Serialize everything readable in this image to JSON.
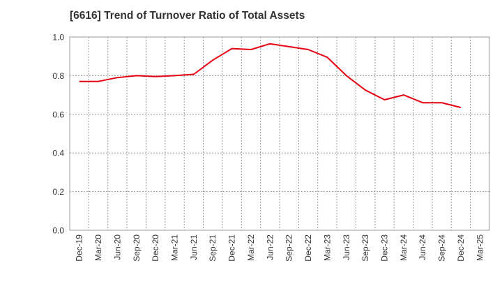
{
  "chart_data": {
    "type": "line",
    "title": "[6616]  Trend of Turnover Ratio of Total Assets",
    "xlabel": "",
    "ylabel": "",
    "ylim": [
      0,
      1.0
    ],
    "yticks": [
      "0.0",
      "0.2",
      "0.4",
      "0.6",
      "0.8",
      "1.0"
    ],
    "x_tick_labels": [
      "Dec-19",
      "Mar-20",
      "Jun-20",
      "Sep-20",
      "Dec-20",
      "Mar-21",
      "Jun-21",
      "Sep-21",
      "Dec-21",
      "Mar-22",
      "Jun-22",
      "Sep-22",
      "Dec-22",
      "Mar-23",
      "Jun-23",
      "Sep-23",
      "Dec-23",
      "Mar-24",
      "Jun-24",
      "Sep-24",
      "Dec-24",
      "Mar-25"
    ],
    "grid": true,
    "series": [
      {
        "color": "#e60012",
        "x": [
          "Dec-19",
          "Mar-20",
          "Jun-20",
          "Sep-20",
          "Dec-20",
          "Mar-21",
          "Jun-21",
          "Sep-21",
          "Dec-21",
          "Mar-22",
          "Jun-22",
          "Sep-22",
          "Dec-22",
          "Mar-23",
          "Jun-23",
          "Sep-23",
          "Dec-23",
          "Mar-24",
          "Jun-24",
          "Sep-24",
          "Dec-24"
        ],
        "values": [
          0.77,
          0.77,
          0.79,
          0.8,
          0.795,
          0.8,
          0.807,
          0.88,
          0.94,
          0.935,
          0.965,
          0.95,
          0.935,
          0.895,
          0.8,
          0.725,
          0.675,
          0.7,
          0.66,
          0.66,
          0.635
        ]
      }
    ]
  }
}
